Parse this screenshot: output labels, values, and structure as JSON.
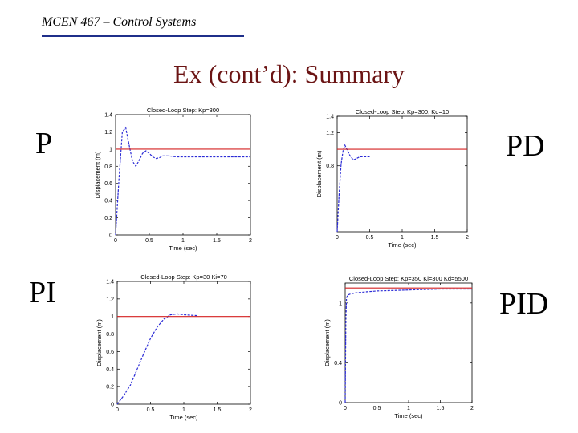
{
  "header": {
    "course": "MCEN 467 – Control Systems"
  },
  "slide": {
    "title": "Ex (cont’d): Summary"
  },
  "labels": {
    "p": "P",
    "pd": "PD",
    "pi": "PI",
    "pid": "PID"
  },
  "colors": {
    "response": "#2b2bd6",
    "reference": "#d42020",
    "header_rule": "#1f2f8a",
    "title": "#6b1414"
  },
  "chart_data": [
    {
      "type": "line",
      "title": "Closed-Loop Step: Kp=300",
      "xlabel": "Time (sec)",
      "ylabel": "Displacement (m)",
      "xlim": [
        0,
        2
      ],
      "ylim": [
        0,
        1.4
      ],
      "xticks": [
        0,
        0.5,
        1,
        1.5,
        2
      ],
      "xtick_labels": [
        "0",
        "0.5",
        "1",
        "1.5",
        "2"
      ],
      "yticks": [
        0,
        0.2,
        0.4,
        0.6,
        0.8,
        1,
        1.2,
        1.4
      ],
      "ytick_labels": [
        "0",
        "0.2",
        "0.4",
        "0.6",
        "0.8",
        "1",
        "1.2",
        "1.4"
      ],
      "series": [
        {
          "role": "response",
          "style": "dashed",
          "x": [
            0,
            0.05,
            0.1,
            0.15,
            0.2,
            0.25,
            0.3,
            0.35,
            0.4,
            0.45,
            0.5,
            0.55,
            0.6,
            0.65,
            0.7,
            0.8,
            0.9,
            1.0,
            1.2,
            1.5,
            2.0
          ],
          "y": [
            0,
            0.65,
            1.2,
            1.25,
            1.05,
            0.86,
            0.8,
            0.87,
            0.95,
            0.98,
            0.95,
            0.91,
            0.89,
            0.9,
            0.92,
            0.92,
            0.91,
            0.91,
            0.91,
            0.91,
            0.91
          ]
        },
        {
          "role": "reference",
          "style": "solid",
          "x": [
            0,
            2
          ],
          "y": [
            1,
            1
          ]
        }
      ]
    },
    {
      "type": "line",
      "title": "Closed-Loop Step: Kp=300, Kd=10",
      "xlabel": "Time (sec)",
      "ylabel": "Displacement (m)",
      "xlim": [
        0,
        2
      ],
      "ylim": [
        0,
        1.4
      ],
      "xticks": [
        0,
        0.5,
        1,
        1.5,
        2
      ],
      "xtick_labels": [
        "0",
        "0.5",
        "1",
        "1.5",
        "2"
      ],
      "yticks": [
        0.8,
        1.2,
        1.4
      ],
      "ytick_labels": [
        "0.8",
        "1.2",
        "1.4"
      ],
      "series": [
        {
          "role": "response",
          "style": "dashed",
          "x": [
            0,
            0.03,
            0.06,
            0.09,
            0.12,
            0.15,
            0.2,
            0.25,
            0.3,
            0.35,
            0.4,
            0.45,
            0.5
          ],
          "y": [
            0,
            0.45,
            0.82,
            0.98,
            1.05,
            1.0,
            0.92,
            0.87,
            0.89,
            0.91,
            0.91,
            0.91,
            0.91
          ]
        },
        {
          "role": "reference",
          "style": "solid",
          "x": [
            0,
            2
          ],
          "y": [
            1,
            1
          ]
        }
      ]
    },
    {
      "type": "line",
      "title": "Closed-Loop Step: Kp=30 Ki=70",
      "xlabel": "Time (sec)",
      "ylabel": "Displacement (m)",
      "xlim": [
        0,
        2
      ],
      "ylim": [
        0,
        1.4
      ],
      "xticks": [
        0,
        0.5,
        1,
        1.5,
        2
      ],
      "xtick_labels": [
        "0",
        "0.5",
        "1",
        "1.5",
        "2"
      ],
      "yticks": [
        0,
        0.2,
        0.4,
        0.6,
        0.8,
        1,
        1.2,
        1.4
      ],
      "ytick_labels": [
        "0",
        "0.2",
        "0.4",
        "0.6",
        "0.8",
        "1",
        "1.2",
        "1.4"
      ],
      "series": [
        {
          "role": "response",
          "style": "dashed",
          "x": [
            0,
            0.1,
            0.2,
            0.3,
            0.4,
            0.5,
            0.6,
            0.7,
            0.8,
            0.9,
            1.0,
            1.2
          ],
          "y": [
            0,
            0.1,
            0.22,
            0.4,
            0.58,
            0.75,
            0.88,
            0.97,
            1.02,
            1.03,
            1.02,
            1.01
          ]
        },
        {
          "role": "reference",
          "style": "solid",
          "x": [
            0,
            2
          ],
          "y": [
            1,
            1
          ]
        }
      ]
    },
    {
      "type": "line",
      "title": "Closed-Loop Step: Kp=350 Ki=300 Kd=5500",
      "xlabel": "Time (sec)",
      "ylabel": "Displacement (m)",
      "xlim": [
        0,
        2
      ],
      "ylim": [
        0,
        1.2
      ],
      "xticks": [
        0,
        0.5,
        1,
        1.5,
        2
      ],
      "xtick_labels": [
        "0",
        "0.5",
        "1",
        "1.5",
        "2"
      ],
      "yticks": [
        0,
        0.4,
        1
      ],
      "ytick_labels": [
        "0",
        "0.4",
        "1"
      ],
      "series": [
        {
          "role": "response",
          "style": "dashed",
          "x": [
            0,
            0.01,
            0.02,
            0.04,
            0.08,
            0.15,
            0.3,
            0.5,
            1.0,
            1.5,
            2.0
          ],
          "y": [
            0,
            0.8,
            1.05,
            1.08,
            1.09,
            1.1,
            1.11,
            1.12,
            1.13,
            1.14,
            1.14
          ]
        },
        {
          "role": "reference",
          "style": "solid",
          "x": [
            0,
            2
          ],
          "y": [
            1.15,
            1.15
          ]
        }
      ]
    }
  ]
}
